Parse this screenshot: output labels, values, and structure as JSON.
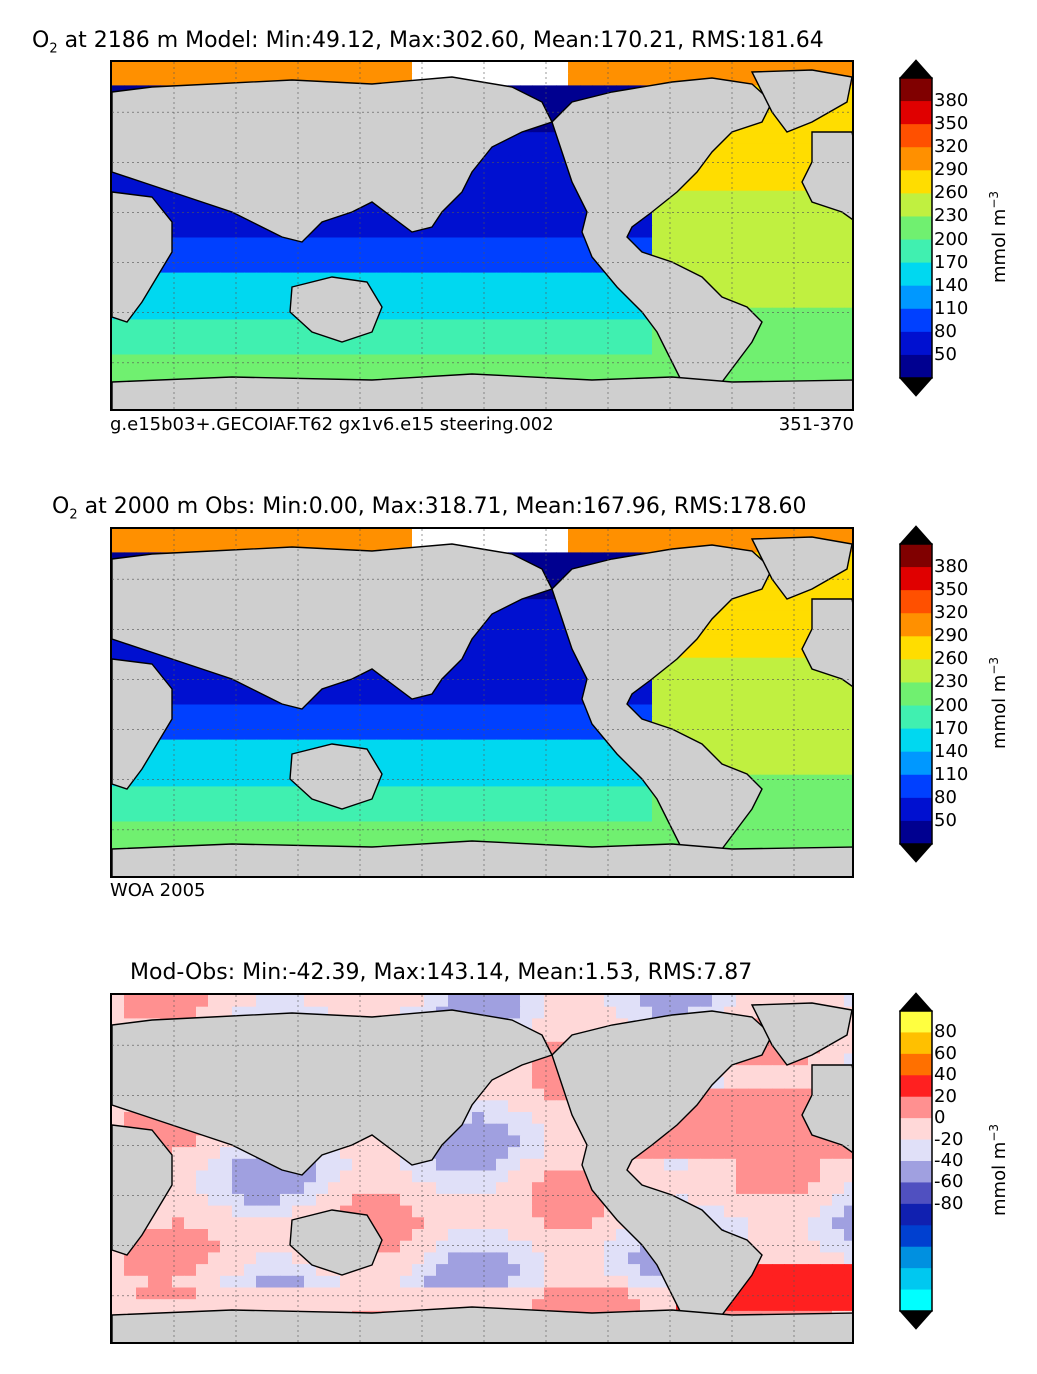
{
  "panels": [
    {
      "title_pre": "O",
      "title_sub": "2",
      "title_post": "at 2186 m Model: Min:49.12, Max:302.60, Mean:170.21, RMS:181.64",
      "caption_left": "g.e15b03+.GECOIAF.T62 gx1v6.e15 steering.002",
      "caption_right": "351-370",
      "colorbar": {
        "labels": [
          "380",
          "350",
          "320",
          "290",
          "260",
          "230",
          "200",
          "170",
          "140",
          "110",
          "80",
          "50"
        ],
        "colors": [
          "#800000",
          "#e00000",
          "#ff5000",
          "#ff9000",
          "#ffdd00",
          "#c0f040",
          "#70f070",
          "#40f0b0",
          "#00d8f0",
          "#0098ff",
          "#0040ff",
          "#0010d0",
          "#000090"
        ],
        "units": "mmol m",
        "units_sup": "−3"
      }
    },
    {
      "title_pre": "O",
      "title_sub": "2",
      "title_post": "at 2000 m Obs: Min:0.00, Max:318.71, Mean:167.96, RMS:178.60",
      "caption_left": "WOA 2005",
      "caption_right": "",
      "colorbar": {
        "labels": [
          "380",
          "350",
          "320",
          "290",
          "260",
          "230",
          "200",
          "170",
          "140",
          "110",
          "80",
          "50"
        ],
        "colors": [
          "#800000",
          "#e00000",
          "#ff5000",
          "#ff9000",
          "#ffdd00",
          "#c0f040",
          "#70f070",
          "#40f0b0",
          "#00d8f0",
          "#0098ff",
          "#0040ff",
          "#0010d0",
          "#000090"
        ],
        "units": "mmol m",
        "units_sup": "−3"
      }
    },
    {
      "title_pre": "",
      "title_sub": "",
      "title_post": "Mod-Obs: Min:-42.39, Max:143.14, Mean:1.53, RMS:7.87",
      "caption_left": "",
      "caption_right": "",
      "colorbar": {
        "labels": [
          "80",
          "60",
          "40",
          "20",
          "0",
          "-20",
          "-40",
          "-60",
          "-80"
        ],
        "colors": [
          "#ffff40",
          "#ffc000",
          "#ff7000",
          "#ff2020",
          "#ff9090",
          "#ffd8d8",
          "#e0e0f8",
          "#a0a0e0",
          "#5050c0",
          "#1020b0",
          "#0040d0",
          "#0090e0",
          "#00c8f0",
          "#00ffff"
        ],
        "units": "mmol m",
        "units_sup": "−3"
      }
    }
  ],
  "style": {
    "land": "#cfcfcf",
    "missing": "#ffffff"
  }
}
